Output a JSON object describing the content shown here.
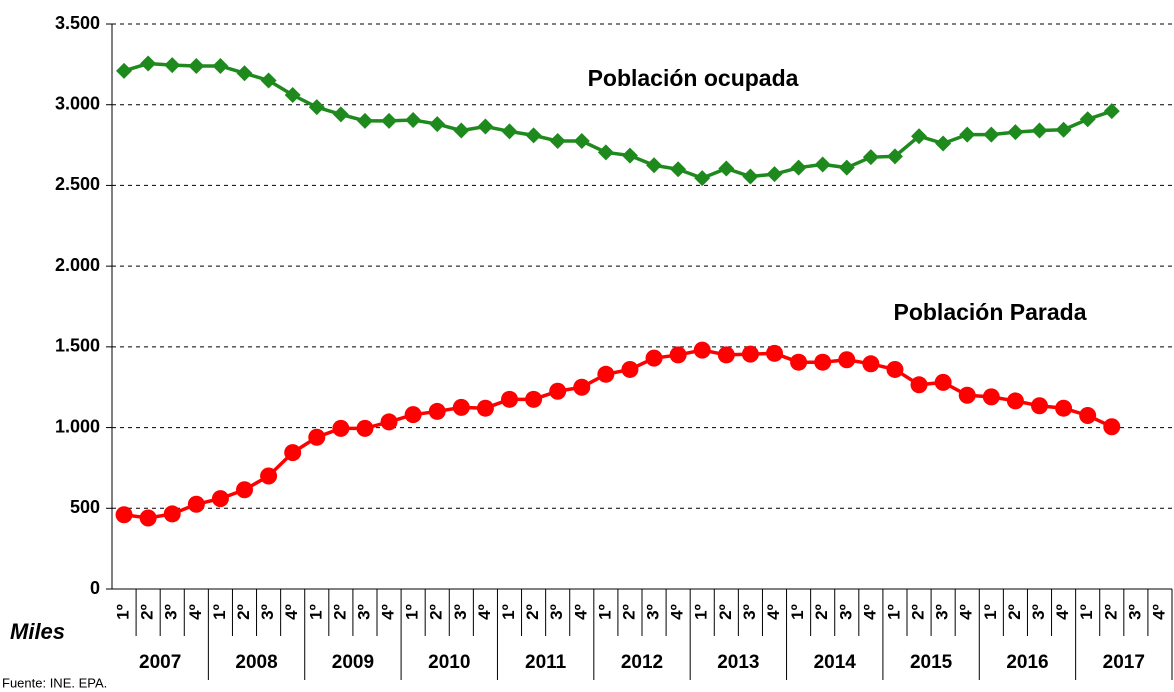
{
  "chart_data": {
    "type": "line",
    "ylabel": "Miles",
    "source": "Fuente: INE. EPA.",
    "annotations": [
      "Población ocupada",
      "Población Parada"
    ],
    "categories": [
      "1º",
      "2º",
      "3º",
      "4º",
      "1º",
      "2º",
      "3º",
      "4º",
      "1º",
      "2º",
      "3º",
      "4º",
      "1º",
      "2º",
      "3º",
      "4º",
      "1º",
      "2º",
      "3º",
      "4º",
      "1º",
      "2º",
      "3º",
      "4º",
      "1º",
      "2º",
      "3º",
      "4º",
      "1º",
      "2º",
      "3º",
      "4º",
      "1º",
      "2º",
      "3º",
      "4º",
      "1º",
      "2º",
      "3º",
      "4º",
      "1º",
      "2º",
      "3º",
      "4º"
    ],
    "year_groups": [
      "2007",
      "2008",
      "2009",
      "2010",
      "2011",
      "2012",
      "2013",
      "2014",
      "2015",
      "2016",
      "2017"
    ],
    "series": [
      {
        "name": "Población ocupada",
        "color": "#1e8a1e",
        "marker": "diamond",
        "values": [
          3210,
          3255,
          3245,
          3240,
          3240,
          3195,
          3150,
          3060,
          2985,
          2940,
          2900,
          2900,
          2905,
          2880,
          2840,
          2865,
          2835,
          2810,
          2775,
          2775,
          2705,
          2685,
          2625,
          2600,
          2545,
          2605,
          2555,
          2570,
          2610,
          2630,
          2610,
          2675,
          2680,
          2805,
          2760,
          2815,
          2815,
          2830,
          2840,
          2845,
          2910,
          2960,
          null,
          null
        ]
      },
      {
        "name": "Población Parada",
        "color": "#ff0000",
        "marker": "circle",
        "values": [
          460,
          440,
          465,
          525,
          560,
          615,
          700,
          845,
          940,
          995,
          995,
          1035,
          1080,
          1100,
          1125,
          1120,
          1175,
          1175,
          1225,
          1250,
          1330,
          1360,
          1430,
          1450,
          1480,
          1450,
          1455,
          1460,
          1405,
          1405,
          1420,
          1395,
          1360,
          1265,
          1280,
          1200,
          1190,
          1165,
          1135,
          1120,
          1075,
          1005,
          null,
          null
        ]
      }
    ],
    "ylim": [
      0,
      3500
    ],
    "yticks": [
      0,
      500,
      {
        "value": 1000,
        "label": "1.000"
      },
      {
        "value": 1500,
        "label": "1.500"
      },
      {
        "value": 2000,
        "label": "2.000"
      },
      {
        "value": 2500,
        "label": "2.500"
      },
      {
        "value": 3000,
        "label": "3.000"
      },
      {
        "value": 3500,
        "label": "3.500"
      }
    ],
    "grid": true
  }
}
